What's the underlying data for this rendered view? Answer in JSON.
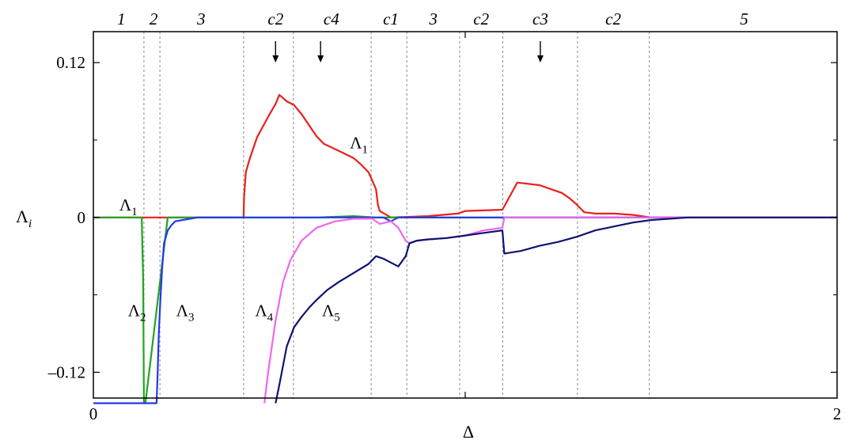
{
  "chart_data": {
    "type": "line",
    "xlabel": "Δ",
    "ylabel": "Λi",
    "ylabel_main": "Λ",
    "ylabel_sub": "i",
    "xlim": [
      0,
      2
    ],
    "ylim": [
      -0.14,
      0.144
    ],
    "x_ticks": [
      {
        "value": 0,
        "label": "0"
      },
      {
        "value": 2,
        "label": "2"
      }
    ],
    "y_ticks": [
      {
        "value": 0.12,
        "label": "0.12"
      },
      {
        "value": 0,
        "label": "0"
      },
      {
        "value": -0.12,
        "label": "–0.12"
      }
    ],
    "minor_x_ticks": [
      1.0
    ],
    "minor_y_ticks": [
      0.06,
      -0.06
    ],
    "region_boundaries": [
      0.136,
      0.179,
      0.404,
      0.538,
      0.747,
      0.843,
      0.985,
      1.101,
      1.302,
      1.495
    ],
    "region_labels": [
      {
        "x": 0.075,
        "label": "1"
      },
      {
        "x": 0.162,
        "label": "2"
      },
      {
        "x": 0.29,
        "label": "3"
      },
      {
        "x": 0.49,
        "label": "c2"
      },
      {
        "x": 0.64,
        "label": "c4"
      },
      {
        "x": 0.8,
        "label": "c1"
      },
      {
        "x": 0.914,
        "label": "3"
      },
      {
        "x": 1.043,
        "label": "c2"
      },
      {
        "x": 1.202,
        "label": "c3"
      },
      {
        "x": 1.398,
        "label": "c2"
      },
      {
        "x": 1.75,
        "label": "5"
      }
    ],
    "arrows": [
      0.49,
      0.611,
      1.202
    ],
    "series": [
      {
        "name": "Λ1",
        "color": "#e8201c",
        "x": [
          0.0,
          0.136,
          0.404,
          0.405,
          0.41,
          0.42,
          0.44,
          0.47,
          0.49,
          0.5,
          0.52,
          0.54,
          0.56,
          0.6,
          0.62,
          0.65,
          0.7,
          0.72,
          0.74,
          0.76,
          0.765,
          0.77,
          0.8,
          0.9,
          0.98,
          1.0,
          1.1,
          1.14,
          1.2,
          1.23,
          1.26,
          1.28,
          1.3,
          1.32,
          1.35,
          1.4,
          1.45,
          1.5,
          1.6,
          2.0
        ],
        "y": [
          0.0,
          0.0,
          0.0,
          0.015,
          0.035,
          0.045,
          0.062,
          0.078,
          0.088,
          0.095,
          0.09,
          0.087,
          0.08,
          0.063,
          0.057,
          0.053,
          0.046,
          0.041,
          0.035,
          0.022,
          0.01,
          0.005,
          0.0,
          0.001,
          0.003,
          0.005,
          0.006,
          0.027,
          0.025,
          0.022,
          0.019,
          0.015,
          0.01,
          0.004,
          0.003,
          0.003,
          0.002,
          0.0,
          0.0,
          0.0
        ]
      },
      {
        "name": "Λ2",
        "color": "#1fa51f",
        "x": [
          0.0,
          0.13,
          0.134,
          0.136,
          0.14,
          0.2,
          0.6,
          0.7,
          0.76,
          0.8,
          2.0
        ],
        "y": [
          0.0,
          0.0,
          -0.05,
          -0.144,
          -0.144,
          0.0,
          0.0,
          0.001,
          0.0,
          0.0,
          0.0
        ]
      },
      {
        "name": "Λ3",
        "color": "#2438e8",
        "x": [
          0.0,
          0.17,
          0.173,
          0.176,
          0.18,
          0.185,
          0.19,
          0.2,
          0.21,
          0.22,
          0.24,
          0.26,
          0.28,
          0.3,
          0.4,
          0.78,
          0.8,
          0.82,
          1.1,
          1.4,
          1.5,
          2.0
        ],
        "y": [
          -0.144,
          -0.144,
          -0.12,
          -0.09,
          -0.065,
          -0.04,
          -0.02,
          -0.01,
          -0.006,
          -0.003,
          -0.002,
          -0.001,
          0.0,
          0.0,
          0.0,
          0.0,
          -0.003,
          0.0,
          0.0,
          0.0,
          0.0,
          0.0
        ]
      },
      {
        "name": "Λ4",
        "color": "#ee66ee",
        "x": [
          0.46,
          0.47,
          0.48,
          0.49,
          0.5,
          0.51,
          0.53,
          0.56,
          0.6,
          0.65,
          0.7,
          0.75,
          0.77,
          0.8,
          0.82,
          0.84,
          0.85,
          0.87,
          0.9,
          0.95,
          1.0,
          1.05,
          1.1,
          1.105,
          1.15,
          1.2,
          1.3,
          1.5,
          2.0
        ],
        "y": [
          -0.144,
          -0.12,
          -0.1,
          -0.08,
          -0.065,
          -0.05,
          -0.033,
          -0.018,
          -0.008,
          -0.003,
          -0.001,
          -0.001,
          -0.005,
          -0.003,
          -0.008,
          -0.018,
          -0.02,
          -0.018,
          -0.017,
          -0.016,
          -0.014,
          -0.01,
          -0.008,
          0.0,
          0.0,
          0.0,
          0.0,
          0.0,
          0.0
        ]
      },
      {
        "name": "Λ5",
        "color": "#0e1470",
        "x": [
          0.49,
          0.5,
          0.52,
          0.54,
          0.56,
          0.58,
          0.6,
          0.63,
          0.66,
          0.7,
          0.74,
          0.76,
          0.78,
          0.8,
          0.82,
          0.84,
          0.85,
          0.87,
          0.9,
          0.95,
          1.0,
          1.05,
          1.1,
          1.105,
          1.15,
          1.2,
          1.25,
          1.3,
          1.35,
          1.4,
          1.45,
          1.5,
          1.6,
          2.0
        ],
        "y": [
          -0.144,
          -0.13,
          -0.1,
          -0.085,
          -0.077,
          -0.07,
          -0.064,
          -0.056,
          -0.05,
          -0.043,
          -0.036,
          -0.03,
          -0.032,
          -0.035,
          -0.038,
          -0.03,
          -0.02,
          -0.018,
          -0.017,
          -0.016,
          -0.014,
          -0.012,
          -0.01,
          -0.028,
          -0.026,
          -0.022,
          -0.019,
          -0.015,
          -0.01,
          -0.007,
          -0.004,
          -0.002,
          0.0,
          0.0
        ]
      }
    ],
    "curve_labels": [
      {
        "series": "Λ1",
        "x": 0.07,
        "y": 0.0055,
        "main": "Λ",
        "sub": "1"
      },
      {
        "series": "Λ1",
        "x": 0.69,
        "y": 0.0535,
        "main": "Λ",
        "sub": "1"
      },
      {
        "series": "Λ2",
        "x": 0.093,
        "y": -0.0765,
        "main": "Λ",
        "sub": "2"
      },
      {
        "series": "Λ3",
        "x": 0.223,
        "y": -0.0765,
        "main": "Λ",
        "sub": "3"
      },
      {
        "series": "Λ4",
        "x": 0.435,
        "y": -0.0765,
        "main": "Λ",
        "sub": "4"
      },
      {
        "series": "Λ5",
        "x": 0.615,
        "y": -0.0765,
        "main": "Λ",
        "sub": "5"
      }
    ]
  }
}
